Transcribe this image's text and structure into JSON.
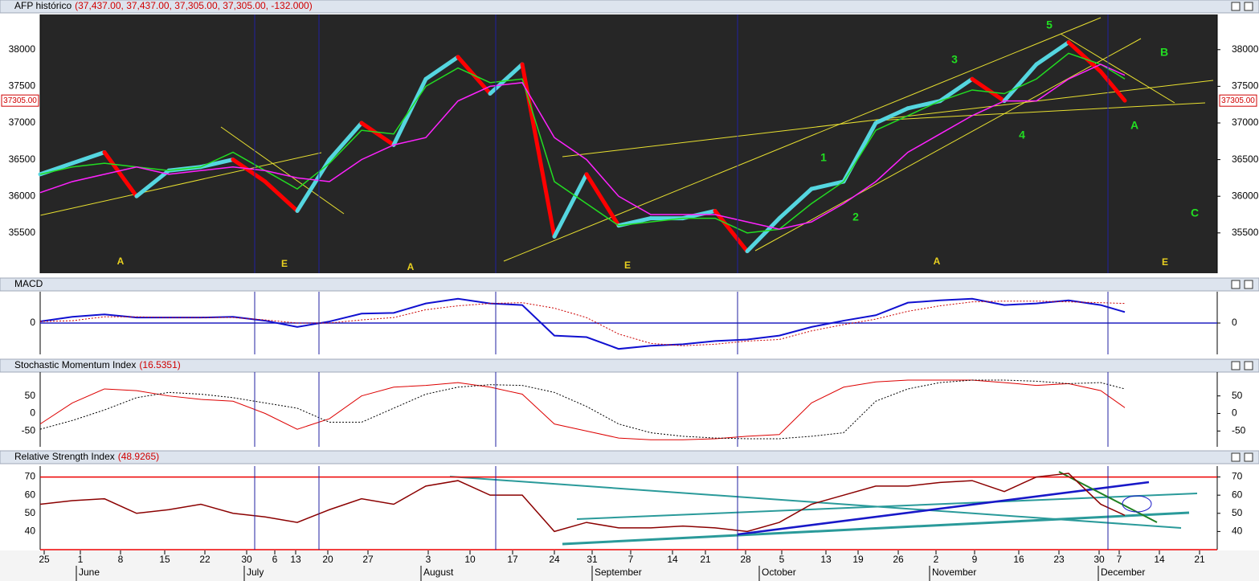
{
  "chart_data": [
    {
      "type": "line",
      "title": "AFP histórico",
      "title_values": "(37,437.00, 37,437.00, 37,305.00, 37,305.00, -132.000)",
      "last_label": "37305.00",
      "x": [
        0,
        4,
        8,
        12,
        16,
        20,
        24,
        28,
        32,
        36,
        40,
        44,
        48,
        52,
        56,
        60,
        64,
        68,
        72,
        76,
        80,
        84,
        88,
        92,
        96,
        100,
        104,
        108,
        112,
        116,
        120,
        124,
        128,
        132,
        135
      ],
      "xlim": [
        0,
        146.5
      ],
      "ylim": [
        34950,
        38480
      ],
      "yticks": [
        35500,
        36000,
        36500,
        37000,
        37500,
        38000
      ],
      "series": [
        {
          "color": "#55d6e0",
          "down_color": "#ff0000",
          "width": 5,
          "values": [
            36300,
            36450,
            36600,
            36000,
            36350,
            36400,
            36500,
            36200,
            35800,
            36500,
            37000,
            36700,
            37600,
            37900,
            37400,
            37800,
            35450,
            36300,
            35600,
            35700,
            35700,
            35800,
            35250,
            35700,
            36100,
            36200,
            37000,
            37200,
            37300,
            37600,
            37300,
            37800,
            38100,
            37700,
            37305
          ]
        },
        {
          "color": "#22dd22",
          "width": 1.5,
          "values": [
            36300,
            36400,
            36450,
            36400,
            36350,
            36400,
            36600,
            36350,
            36100,
            36450,
            36900,
            36850,
            37500,
            37750,
            37550,
            37600,
            36200,
            35900,
            35600,
            35650,
            35700,
            35700,
            35500,
            35550,
            35900,
            36200,
            36900,
            37100,
            37300,
            37450,
            37400,
            37600,
            37950,
            37800,
            37600
          ]
        },
        {
          "color": "#ff22ff",
          "width": 1.5,
          "values": [
            36050,
            36200,
            36300,
            36400,
            36300,
            36350,
            36400,
            36350,
            36250,
            36200,
            36500,
            36700,
            36800,
            37300,
            37500,
            37550,
            36800,
            36500,
            36000,
            35750,
            35750,
            35750,
            35650,
            35550,
            35650,
            35900,
            36200,
            36600,
            36850,
            37100,
            37300,
            37300,
            37600,
            37800,
            37650
          ]
        }
      ],
      "annotations": [
        {
          "text": "A",
          "color": "#e8d020"
        },
        {
          "text": "E",
          "color": "#e8d020"
        },
        {
          "text": "A",
          "color": "#e8d020"
        },
        {
          "text": "E",
          "color": "#e8d020"
        },
        {
          "text": "A",
          "color": "#e8d020"
        },
        {
          "text": "E",
          "color": "#e8d020"
        },
        {
          "text": "1",
          "color": "#22dd22"
        },
        {
          "text": "2",
          "color": "#22dd22"
        },
        {
          "text": "3",
          "color": "#22dd22"
        },
        {
          "text": "4",
          "color": "#22dd22"
        },
        {
          "text": "5",
          "color": "#22dd22"
        },
        {
          "text": "B",
          "color": "#22dd22"
        },
        {
          "text": "A",
          "color": "#22dd22"
        },
        {
          "text": "C",
          "color": "#22dd22"
        }
      ]
    },
    {
      "type": "line",
      "title": "MACD",
      "x": [
        0,
        4,
        8,
        12,
        16,
        20,
        24,
        28,
        32,
        36,
        40,
        44,
        48,
        52,
        56,
        60,
        64,
        68,
        72,
        76,
        80,
        84,
        88,
        92,
        96,
        100,
        104,
        108,
        112,
        116,
        120,
        124,
        128,
        132,
        135
      ],
      "xlim": [
        0,
        146.5
      ],
      "ylim": [
        -400,
        400
      ],
      "yticks": [
        0
      ],
      "levels": [
        0
      ],
      "level_color": "#2020c0",
      "series": [
        {
          "color": "#1010d0",
          "width": 2,
          "values": [
            20,
            80,
            110,
            70,
            70,
            70,
            80,
            30,
            -50,
            20,
            120,
            130,
            250,
            310,
            250,
            230,
            -160,
            -180,
            -330,
            -290,
            -270,
            -230,
            -210,
            -160,
            -50,
            30,
            100,
            260,
            290,
            310,
            230,
            250,
            290,
            230,
            140
          ]
        },
        {
          "color": "#cc0000",
          "width": 1,
          "dash": true,
          "values": [
            20,
            30,
            80,
            80,
            70,
            70,
            70,
            40,
            0,
            0,
            40,
            70,
            170,
            220,
            250,
            260,
            190,
            70,
            -140,
            -260,
            -290,
            -270,
            -230,
            -210,
            -100,
            -20,
            50,
            150,
            220,
            270,
            280,
            280,
            270,
            260,
            250
          ]
        }
      ]
    },
    {
      "type": "line",
      "title": "Stochastic Momentum Index",
      "title_values": "(16.5351)",
      "x": [
        0,
        4,
        8,
        12,
        16,
        20,
        24,
        28,
        32,
        36,
        40,
        44,
        48,
        52,
        56,
        60,
        64,
        68,
        72,
        76,
        80,
        84,
        88,
        92,
        96,
        100,
        104,
        108,
        112,
        116,
        120,
        124,
        128,
        132,
        135
      ],
      "xlim": [
        0,
        146.5
      ],
      "ylim": [
        -95,
        118
      ],
      "yticks": [
        -50,
        0,
        50
      ],
      "series": [
        {
          "color": "#dd0000",
          "width": 1,
          "values": [
            -30,
            30,
            70,
            65,
            50,
            40,
            35,
            0,
            -45,
            -15,
            50,
            75,
            80,
            88,
            75,
            55,
            -30,
            -50,
            -70,
            -75,
            -75,
            -72,
            -65,
            -60,
            30,
            75,
            90,
            95,
            95,
            95,
            88,
            80,
            85,
            65,
            16.5
          ]
        },
        {
          "color": "#000000",
          "width": 1,
          "dash": true,
          "values": [
            -45,
            -20,
            10,
            45,
            60,
            55,
            45,
            30,
            15,
            -25,
            -25,
            15,
            55,
            75,
            82,
            80,
            60,
            20,
            -30,
            -55,
            -65,
            -70,
            -72,
            -72,
            -65,
            -55,
            35,
            70,
            88,
            95,
            95,
            92,
            85,
            88,
            70
          ]
        }
      ]
    },
    {
      "type": "line",
      "title": "Relative Strength Index",
      "title_values": "(48.9265)",
      "x": [
        0,
        4,
        8,
        12,
        16,
        20,
        24,
        28,
        32,
        36,
        40,
        44,
        48,
        52,
        56,
        60,
        64,
        68,
        72,
        76,
        80,
        84,
        88,
        92,
        96,
        100,
        104,
        108,
        112,
        116,
        120,
        124,
        128,
        132,
        135
      ],
      "xlim": [
        0,
        146.5
      ],
      "ylim": [
        30,
        76
      ],
      "yticks": [
        40,
        50,
        60,
        70
      ],
      "levels": [
        70,
        30
      ],
      "level_color": "#ee0000",
      "series": [
        {
          "color": "#8b0000",
          "width": 1.5,
          "values": [
            55,
            57,
            58,
            50,
            52,
            55,
            50,
            48,
            45,
            52,
            58,
            55,
            65,
            68,
            60,
            60,
            40,
            45,
            42,
            42,
            43,
            42,
            40,
            45,
            55,
            60,
            65,
            65,
            67,
            68,
            62,
            70,
            72,
            55,
            48.9
          ]
        }
      ],
      "cycle_lines": [
        26.7,
        34.7,
        56.7,
        86.8,
        132.9
      ],
      "xticks": [
        {
          "value": 0.5,
          "label": "25"
        },
        {
          "value": 5,
          "label": "1"
        },
        {
          "value": 10,
          "label": "8"
        },
        {
          "value": 15.5,
          "label": "15"
        },
        {
          "value": 20.5,
          "label": "22"
        },
        {
          "value": 25.7,
          "label": "30"
        },
        {
          "value": 29.2,
          "label": "6"
        },
        {
          "value": 31.8,
          "label": "13"
        },
        {
          "value": 35.8,
          "label": "20"
        },
        {
          "value": 40.8,
          "label": "27"
        },
        {
          "value": 48.3,
          "label": "3"
        },
        {
          "value": 53.5,
          "label": "10"
        },
        {
          "value": 58.8,
          "label": "17"
        },
        {
          "value": 64,
          "label": "24"
        },
        {
          "value": 68.7,
          "label": "31"
        },
        {
          "value": 73.5,
          "label": "7"
        },
        {
          "value": 78.7,
          "label": "14"
        },
        {
          "value": 82.8,
          "label": "21"
        },
        {
          "value": 87.8,
          "label": "28"
        },
        {
          "value": 92.3,
          "label": "5"
        },
        {
          "value": 97.8,
          "label": "13"
        },
        {
          "value": 101.8,
          "label": "19"
        },
        {
          "value": 106.8,
          "label": "26"
        },
        {
          "value": 111.5,
          "label": "2"
        },
        {
          "value": 116.3,
          "label": "9"
        },
        {
          "value": 121.8,
          "label": "16"
        },
        {
          "value": 126.8,
          "label": "23"
        },
        {
          "value": 131.8,
          "label": "30"
        },
        {
          "value": 134.3,
          "label": "7"
        },
        {
          "value": 139.3,
          "label": "14"
        },
        {
          "value": 144.3,
          "label": "21"
        }
      ],
      "month_ticks": [
        {
          "value": 4.8,
          "label": "June"
        },
        {
          "value": 25.7,
          "label": "July"
        },
        {
          "value": 47.7,
          "label": "August"
        },
        {
          "value": 69,
          "label": "September"
        },
        {
          "value": 89.8,
          "label": "October"
        },
        {
          "value": 111,
          "label": "November"
        },
        {
          "value": 132,
          "label": "December"
        }
      ]
    }
  ]
}
